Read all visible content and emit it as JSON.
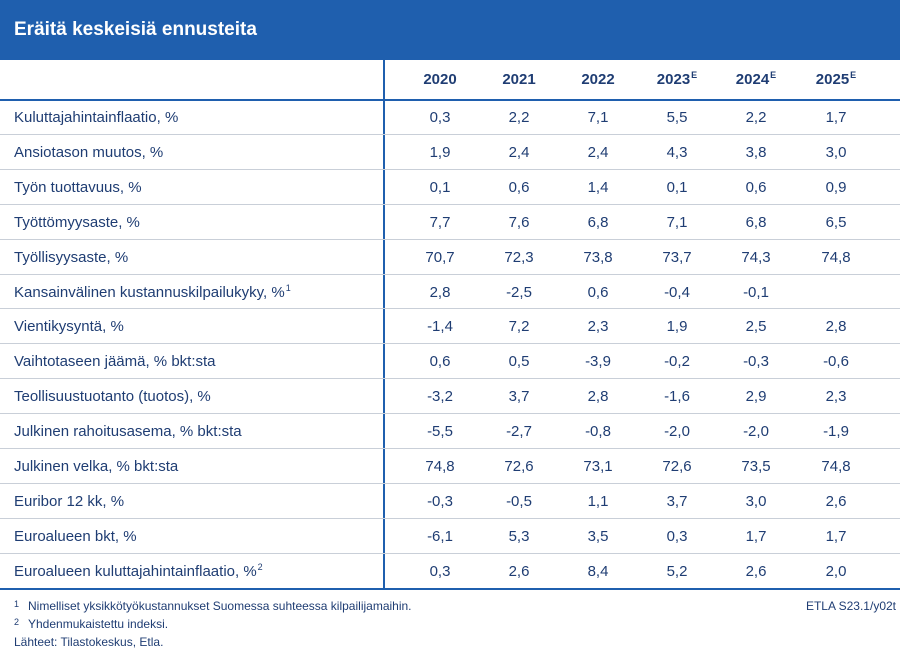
{
  "header": {
    "title": "Eräitä keskeisiä ennusteita"
  },
  "chart_data": {
    "type": "table",
    "columns": [
      {
        "year": "2020",
        "sup": ""
      },
      {
        "year": "2021",
        "sup": ""
      },
      {
        "year": "2022",
        "sup": ""
      },
      {
        "year": "2023",
        "sup": "E"
      },
      {
        "year": "2024",
        "sup": "E"
      },
      {
        "year": "2025",
        "sup": "E"
      }
    ],
    "rows": [
      {
        "label": "Kuluttajahintainflaatio, %",
        "sup": "",
        "values": [
          "0,3",
          "2,2",
          "7,1",
          "5,5",
          "2,2",
          "1,7"
        ]
      },
      {
        "label": "Ansiotason muutos, %",
        "sup": "",
        "values": [
          "1,9",
          "2,4",
          "2,4",
          "4,3",
          "3,8",
          "3,0"
        ]
      },
      {
        "label": "Työn tuottavuus, %",
        "sup": "",
        "values": [
          "0,1",
          "0,6",
          "1,4",
          "0,1",
          "0,6",
          "0,9"
        ]
      },
      {
        "label": "Työttömyysaste, %",
        "sup": "",
        "values": [
          "7,7",
          "7,6",
          "6,8",
          "7,1",
          "6,8",
          "6,5"
        ]
      },
      {
        "label": "Työllisyysaste, %",
        "sup": "",
        "values": [
          "70,7",
          "72,3",
          "73,8",
          "73,7",
          "74,3",
          "74,8"
        ]
      },
      {
        "label": "Kansainvälinen kustannuskilpailukyky, %",
        "sup": "1",
        "values": [
          "2,8",
          "-2,5",
          "0,6",
          "-0,4",
          "-0,1",
          ""
        ]
      },
      {
        "label": "Vientikysyntä, %",
        "sup": "",
        "values": [
          "-1,4",
          "7,2",
          "2,3",
          "1,9",
          "2,5",
          "2,8"
        ]
      },
      {
        "label": "Vaihtotaseen jäämä, % bkt:sta",
        "sup": "",
        "values": [
          "0,6",
          "0,5",
          "-3,9",
          "-0,2",
          "-0,3",
          "-0,6"
        ]
      },
      {
        "label": "Teollisuustuotanto (tuotos), %",
        "sup": "",
        "values": [
          "-3,2",
          "3,7",
          "2,8",
          "-1,6",
          "2,9",
          "2,3"
        ]
      },
      {
        "label": "Julkinen rahoitusasema, % bkt:sta",
        "sup": "",
        "values": [
          "-5,5",
          "-2,7",
          "-0,8",
          "-2,0",
          "-2,0",
          "-1,9"
        ]
      },
      {
        "label": "Julkinen velka, % bkt:sta",
        "sup": "",
        "values": [
          "74,8",
          "72,6",
          "73,1",
          "72,6",
          "73,5",
          "74,8"
        ]
      },
      {
        "label": "Euribor 12 kk, %",
        "sup": "",
        "values": [
          "-0,3",
          "-0,5",
          "1,1",
          "3,7",
          "3,0",
          "2,6"
        ]
      },
      {
        "label": "Euroalueen bkt, %",
        "sup": "",
        "values": [
          "-6,1",
          "5,3",
          "3,5",
          "0,3",
          "1,7",
          "1,7"
        ]
      },
      {
        "label": "Euroalueen kuluttajahintainflaatio, %",
        "sup": "2",
        "values": [
          "0,3",
          "2,6",
          "8,4",
          "5,2",
          "2,6",
          "2,0"
        ]
      }
    ]
  },
  "footer": {
    "notes": [
      {
        "num": "1",
        "text": "Nimelliset yksikkötyökustannukset Suomessa suhteessa kilpailijamaihin."
      },
      {
        "num": "2",
        "text": "Yhdenmukaistettu indeksi."
      },
      {
        "num": "",
        "text": "Lähteet: Tilastokeskus, Etla."
      }
    ],
    "code": "ETLA S23.1/y02t"
  },
  "colors": {
    "header_bg": "#1f5fae",
    "text": "#1f3d73",
    "grid": "#c9cfd8"
  }
}
